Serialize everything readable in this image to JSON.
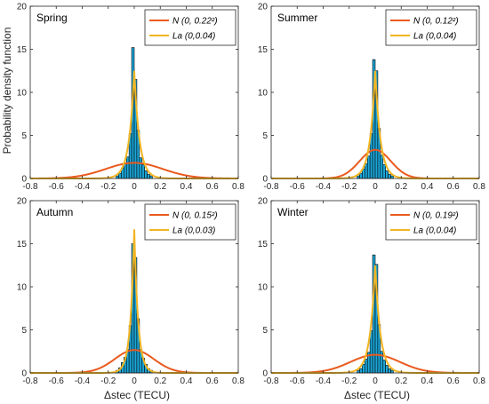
{
  "figure": {
    "ylabel": "Probability density function",
    "xlabel": "Δstec (TECU)"
  },
  "colors": {
    "histogram_fill": "#1ba6d8",
    "normal_curve": "#ea5a1e",
    "laplace_curve": "#f2b523",
    "axis": "#262626"
  },
  "chart_data": [
    {
      "type": "bar",
      "title": "Spring",
      "xlim": [
        -0.8,
        0.8
      ],
      "ylim": [
        0,
        20
      ],
      "xticks": [
        -0.8,
        -0.6,
        -0.4,
        -0.2,
        0,
        0.2,
        0.4,
        0.6,
        0.8
      ],
      "yticks": [
        0,
        5,
        10,
        15,
        20
      ],
      "histogram": {
        "bin_width": 0.02,
        "bin_centers": [
          -0.13,
          -0.11,
          -0.09,
          -0.07,
          -0.05,
          -0.03,
          -0.01,
          0.01,
          0.03,
          0.05,
          0.07,
          0.09,
          0.11,
          0.13
        ],
        "values": [
          0.3,
          0.6,
          1.2,
          1.8,
          2.5,
          5.2,
          15.2,
          11.5,
          5.6,
          2.4,
          1.6,
          0.9,
          0.5,
          0.3
        ]
      },
      "series": [
        {
          "name": "N (0, 0.22²)",
          "distribution": "normal",
          "mu": 0,
          "sigma": 0.22
        },
        {
          "name": "La (0,0.04)",
          "distribution": "laplace",
          "mu": 0,
          "b": 0.04
        }
      ],
      "legend": "top-right"
    },
    {
      "type": "bar",
      "title": "Summer",
      "xlim": [
        -0.8,
        0.8
      ],
      "ylim": [
        0,
        20
      ],
      "xticks": [
        -0.8,
        -0.6,
        -0.4,
        -0.2,
        0,
        0.2,
        0.4,
        0.6,
        0.8
      ],
      "yticks": [
        0,
        5,
        10,
        15,
        20
      ],
      "histogram": {
        "bin_width": 0.02,
        "bin_centers": [
          -0.13,
          -0.11,
          -0.09,
          -0.07,
          -0.05,
          -0.03,
          -0.01,
          0.01,
          0.03,
          0.05,
          0.07,
          0.09,
          0.11,
          0.13
        ],
        "values": [
          0.3,
          0.6,
          1.1,
          1.7,
          2.6,
          5.2,
          13.8,
          12.5,
          5.8,
          2.7,
          1.6,
          0.9,
          0.5,
          0.3
        ]
      },
      "series": [
        {
          "name": "N (0, 0.12²)",
          "distribution": "normal",
          "mu": 0,
          "sigma": 0.12
        },
        {
          "name": "La (0,0.04)",
          "distribution": "laplace",
          "mu": 0,
          "b": 0.04
        }
      ],
      "legend": "top-right"
    },
    {
      "type": "bar",
      "title": "Autumn",
      "xlim": [
        -0.8,
        0.8
      ],
      "ylim": [
        0,
        20
      ],
      "xticks": [
        -0.8,
        -0.6,
        -0.4,
        -0.2,
        0,
        0.2,
        0.4,
        0.6,
        0.8
      ],
      "yticks": [
        0,
        5,
        10,
        15,
        20
      ],
      "histogram": {
        "bin_width": 0.02,
        "bin_centers": [
          -0.13,
          -0.11,
          -0.09,
          -0.07,
          -0.05,
          -0.03,
          -0.01,
          0.01,
          0.03,
          0.05,
          0.07,
          0.09,
          0.11,
          0.13
        ],
        "values": [
          0.3,
          0.6,
          1.2,
          1.8,
          2.7,
          5.5,
          15.0,
          13.4,
          6.3,
          2.7,
          1.7,
          1.0,
          0.5,
          0.3
        ]
      },
      "series": [
        {
          "name": "N (0, 0.15²)",
          "distribution": "normal",
          "mu": 0,
          "sigma": 0.15
        },
        {
          "name": "La (0,0.03)",
          "distribution": "laplace",
          "mu": 0,
          "b": 0.03
        }
      ],
      "legend": "top-right"
    },
    {
      "type": "bar",
      "title": "Winter",
      "xlim": [
        -0.8,
        0.8
      ],
      "ylim": [
        0,
        20
      ],
      "xticks": [
        -0.8,
        -0.6,
        -0.4,
        -0.2,
        0,
        0.2,
        0.4,
        0.6,
        0.8
      ],
      "yticks": [
        0,
        5,
        10,
        15,
        20
      ],
      "histogram": {
        "bin_width": 0.02,
        "bin_centers": [
          -0.13,
          -0.11,
          -0.09,
          -0.07,
          -0.05,
          -0.03,
          -0.01,
          0.01,
          0.03,
          0.05,
          0.07,
          0.09,
          0.11,
          0.13
        ],
        "values": [
          0.3,
          0.5,
          1.0,
          1.6,
          2.4,
          4.9,
          13.7,
          12.6,
          5.6,
          2.5,
          1.5,
          0.9,
          0.5,
          0.3
        ]
      },
      "series": [
        {
          "name": "N (0, 0.19²)",
          "distribution": "normal",
          "mu": 0,
          "sigma": 0.19
        },
        {
          "name": "La (0,0.04)",
          "distribution": "laplace",
          "mu": 0,
          "b": 0.04
        }
      ],
      "legend": "top-right"
    }
  ]
}
